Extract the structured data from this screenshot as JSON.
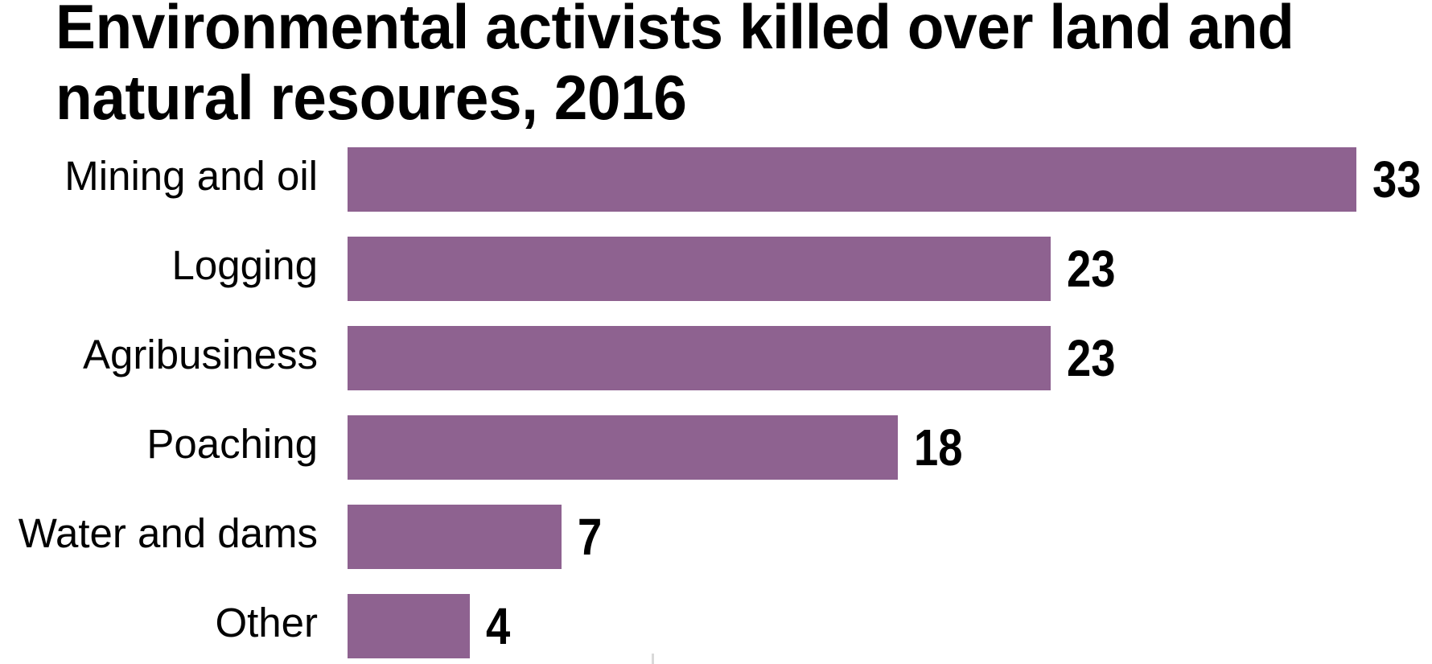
{
  "chart_data": {
    "type": "bar",
    "orientation": "horizontal",
    "title": "Environmental activists killed over land and natural resoures, 2016",
    "title_lines": [
      "Environmental activists killed over land and",
      "natural resoures, 2016"
    ],
    "categories": [
      "Mining and oil",
      "Logging",
      "Agribusiness",
      "Poaching",
      "Water and dams",
      "Other"
    ],
    "values": [
      33,
      23,
      23,
      18,
      7,
      4
    ],
    "value_labels": [
      "33",
      "23",
      "23",
      "18",
      "7",
      "4"
    ],
    "xlim": [
      0,
      33
    ],
    "grid": false,
    "legend": false,
    "axes_visible": false,
    "bar_color": "#8e6290",
    "title_color": "#000000",
    "label_color": "#000000",
    "value_label_color": "#000000",
    "value_label_position": "right-of-bar"
  }
}
